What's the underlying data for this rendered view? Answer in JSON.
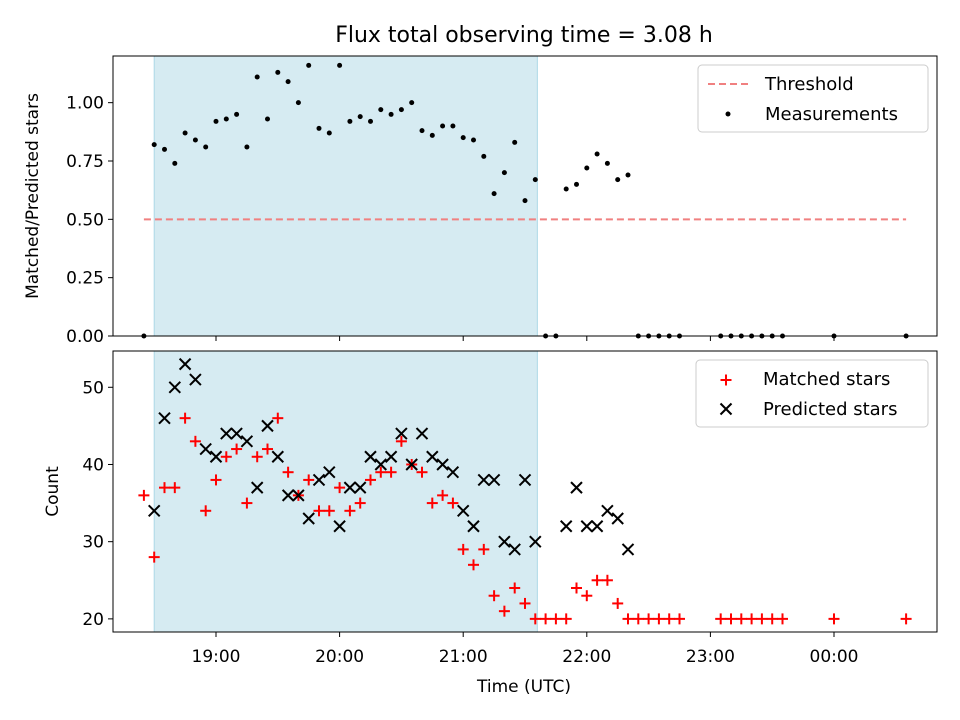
{
  "title": "Flux total observing time = 3.08 h",
  "colors": {
    "span": "#add8e6",
    "threshold": "#f08080",
    "matched": "#ff0000",
    "predicted": "#000000",
    "measurements": "#000000"
  },
  "chart_data": [
    {
      "type": "scatter",
      "panel": "top",
      "ylabel": "Matched/Predicted stars",
      "xlim": [
        "18:10",
        "24:50"
      ],
      "ylim": [
        0,
        1.2
      ],
      "yticks": [
        0.0,
        0.25,
        0.5,
        0.75,
        1.0
      ],
      "ytick_labels": [
        "0.00",
        "0.25",
        "0.50",
        "0.75",
        "1.00"
      ],
      "shaded_span": [
        "18:30",
        "21:36"
      ],
      "legend": {
        "placement": "upper right",
        "entries": [
          "Threshold",
          "Measurements"
        ]
      },
      "threshold": {
        "name": "Threshold",
        "y": 0.5,
        "x": [
          "18:25",
          "24:35"
        ],
        "style": "dashed"
      },
      "series": [
        {
          "name": "Measurements",
          "x": [
            "18:25",
            "18:30",
            "18:35",
            "18:40",
            "18:45",
            "18:50",
            "18:55",
            "19:00",
            "19:05",
            "19:10",
            "19:15",
            "19:20",
            "19:25",
            "19:30",
            "19:35",
            "19:40",
            "19:45",
            "19:50",
            "19:55",
            "20:00",
            "20:05",
            "20:10",
            "20:15",
            "20:20",
            "20:25",
            "20:30",
            "20:35",
            "20:40",
            "20:45",
            "20:50",
            "20:55",
            "21:00",
            "21:05",
            "21:10",
            "21:15",
            "21:20",
            "21:25",
            "21:30",
            "21:35",
            "21:40",
            "21:45",
            "21:50",
            "21:55",
            "22:00",
            "22:05",
            "22:10",
            "22:15",
            "22:20",
            "22:25",
            "22:30",
            "22:35",
            "22:40",
            "22:45",
            "23:05",
            "23:10",
            "23:15",
            "23:20",
            "23:25",
            "23:30",
            "23:35",
            "24:00",
            "24:35"
          ],
          "y": [
            0.0,
            0.82,
            0.8,
            0.74,
            0.87,
            0.84,
            0.81,
            0.92,
            0.93,
            0.95,
            0.81,
            1.11,
            0.93,
            1.13,
            1.09,
            1.0,
            1.16,
            0.89,
            0.87,
            1.16,
            0.92,
            0.94,
            0.92,
            0.97,
            0.95,
            0.97,
            1.0,
            0.88,
            0.86,
            0.9,
            0.9,
            0.85,
            0.84,
            0.77,
            0.61,
            0.7,
            0.83,
            0.58,
            0.67,
            0.0,
            0.0,
            0.63,
            0.65,
            0.72,
            0.78,
            0.74,
            0.67,
            0.69,
            0.0,
            0.0,
            0.0,
            0.0,
            0.0,
            0.0,
            0.0,
            0.0,
            0.0,
            0.0,
            0.0,
            0.0,
            0.0,
            0.0
          ]
        }
      ]
    },
    {
      "type": "scatter",
      "panel": "bottom",
      "xlabel": "Time (UTC)",
      "ylabel": "Count",
      "xlim": [
        "18:10",
        "24:50"
      ],
      "ylim": [
        18.3,
        54.7
      ],
      "xticks": [
        "19:00",
        "20:00",
        "21:00",
        "22:00",
        "23:00",
        "24:00"
      ],
      "xtick_labels": [
        "19:00",
        "20:00",
        "21:00",
        "22:00",
        "23:00",
        "00:00"
      ],
      "yticks": [
        20,
        30,
        40,
        50
      ],
      "ytick_labels": [
        "20",
        "30",
        "40",
        "50"
      ],
      "shaded_span": [
        "18:30",
        "21:36"
      ],
      "legend": {
        "placement": "upper right",
        "entries": [
          "Matched stars",
          "Predicted stars"
        ]
      },
      "series": [
        {
          "name": "Matched stars",
          "marker": "plus",
          "x": [
            "18:25",
            "18:30",
            "18:35",
            "18:40",
            "18:45",
            "18:50",
            "18:55",
            "19:00",
            "19:05",
            "19:10",
            "19:15",
            "19:20",
            "19:25",
            "19:30",
            "19:35",
            "19:40",
            "19:45",
            "19:50",
            "19:55",
            "20:00",
            "20:05",
            "20:10",
            "20:15",
            "20:20",
            "20:25",
            "20:30",
            "20:35",
            "20:40",
            "20:45",
            "20:50",
            "20:55",
            "21:00",
            "21:05",
            "21:10",
            "21:15",
            "21:20",
            "21:25",
            "21:30",
            "21:35",
            "21:40",
            "21:45",
            "21:50",
            "21:55",
            "22:00",
            "22:05",
            "22:10",
            "22:15",
            "22:20",
            "22:25",
            "22:30",
            "22:35",
            "22:40",
            "22:45",
            "23:05",
            "23:10",
            "23:15",
            "23:20",
            "23:25",
            "23:30",
            "23:35",
            "24:00",
            "24:35"
          ],
          "y": [
            36,
            28,
            37,
            37,
            46,
            43,
            34,
            38,
            41,
            42,
            35,
            41,
            42,
            46,
            39,
            36,
            38,
            34,
            34,
            37,
            34,
            35,
            38,
            39,
            39,
            43,
            40,
            39,
            35,
            36,
            35,
            29,
            27,
            29,
            23,
            21,
            24,
            22,
            20,
            20,
            20,
            20,
            24,
            23,
            25,
            25,
            22,
            20,
            20,
            20,
            20,
            20,
            20,
            20,
            20,
            20,
            20,
            20,
            20,
            20,
            20,
            20
          ]
        },
        {
          "name": "Predicted stars",
          "marker": "x",
          "x": [
            "18:30",
            "18:35",
            "18:40",
            "18:45",
            "18:50",
            "18:55",
            "19:00",
            "19:05",
            "19:10",
            "19:15",
            "19:20",
            "19:25",
            "19:30",
            "19:35",
            "19:40",
            "19:45",
            "19:50",
            "19:55",
            "20:00",
            "20:05",
            "20:10",
            "20:15",
            "20:20",
            "20:25",
            "20:30",
            "20:35",
            "20:40",
            "20:45",
            "20:50",
            "20:55",
            "21:00",
            "21:05",
            "21:10",
            "21:15",
            "21:20",
            "21:25",
            "21:30",
            "21:35",
            "21:50",
            "21:55",
            "22:00",
            "22:05",
            "22:10",
            "22:15",
            "22:20"
          ],
          "y": [
            34,
            46,
            50,
            53,
            51,
            42,
            41,
            44,
            44,
            43,
            37,
            45,
            41,
            36,
            36,
            33,
            38,
            39,
            32,
            37,
            37,
            41,
            40,
            41,
            44,
            40,
            44,
            41,
            40,
            39,
            34,
            32,
            38,
            38,
            30,
            29,
            38,
            30,
            32,
            37,
            32,
            32,
            34,
            33,
            29
          ]
        }
      ]
    }
  ]
}
